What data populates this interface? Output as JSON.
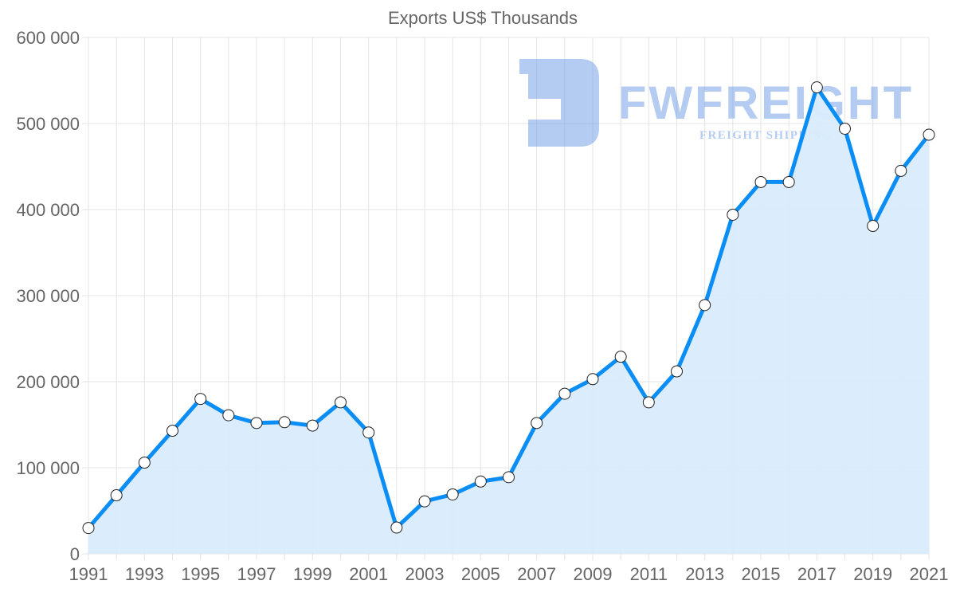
{
  "chart_data": {
    "type": "line",
    "title": "Exports US$ Thousands",
    "xlabel": "",
    "ylabel": "",
    "x": [
      1991,
      1992,
      1993,
      1994,
      1995,
      1996,
      1997,
      1998,
      1999,
      2000,
      2001,
      2002,
      2003,
      2004,
      2005,
      2006,
      2007,
      2008,
      2009,
      2010,
      2011,
      2012,
      2013,
      2014,
      2015,
      2016,
      2017,
      2018,
      2019,
      2020,
      2021
    ],
    "series": [
      {
        "name": "Exports US$ Thousands",
        "values": [
          30000,
          68000,
          106000,
          143000,
          180000,
          161000,
          152000,
          153000,
          149000,
          176000,
          141000,
          30500,
          61000,
          69000,
          84000,
          89000,
          152000,
          186000,
          203000,
          229000,
          176000,
          212000,
          289000,
          394000,
          432000,
          432000,
          542000,
          494000,
          381000,
          445000,
          487000
        ]
      }
    ],
    "xticks": [
      "1991",
      "1993",
      "1995",
      "1997",
      "1999",
      "2001",
      "2003",
      "2005",
      "2007",
      "2009",
      "2011",
      "2013",
      "2015",
      "2017",
      "2019",
      "2021"
    ],
    "yticks": [
      "0",
      "100 000",
      "200 000",
      "300 000",
      "400 000",
      "500 000",
      "600 000"
    ],
    "ylim": [
      0,
      600000
    ],
    "xlim": [
      1991,
      2021
    ],
    "grid": true,
    "legend": "none",
    "line_color": "#0a8ef5",
    "fill_color": "#d9ecfd",
    "watermark": {
      "name": "FWFREIGHT",
      "tagline": "FREIGHT SHIPPING",
      "color": "#6c9ae6"
    }
  }
}
